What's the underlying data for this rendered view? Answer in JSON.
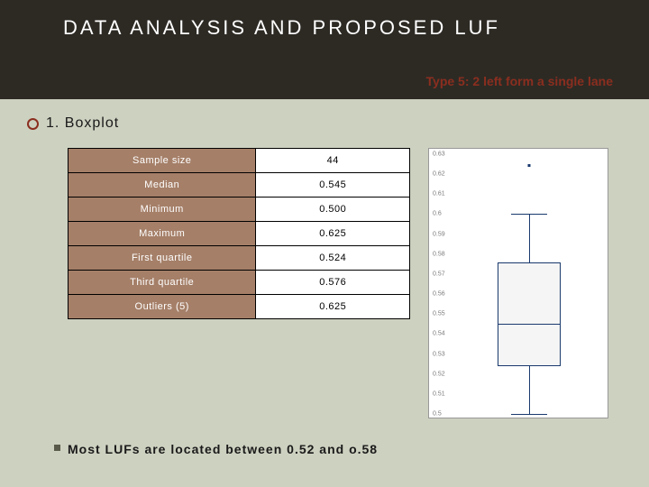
{
  "header": {
    "title": "DATA ANALYSIS AND PROPOSED LUF",
    "subtitle": "Type 5: 2 left form a single lane"
  },
  "section": {
    "title": "1. Boxplot"
  },
  "table": {
    "rows": [
      {
        "key": "Sample size",
        "val": "44"
      },
      {
        "key": "Median",
        "val": "0.545"
      },
      {
        "key": "Minimum",
        "val": "0.500"
      },
      {
        "key": "Maximum",
        "val": "0.625"
      },
      {
        "key": "First quartile",
        "val": "0.524"
      },
      {
        "key": "Third quartile",
        "val": "0.576"
      },
      {
        "key": "Outliers (5)",
        "val": "0.625"
      }
    ]
  },
  "boxplot": {
    "ymin": 0.5,
    "ymax": 0.63,
    "ytick_step": 0.01,
    "ylabels": [
      "0.63",
      "0.62",
      "0.61",
      "0.6",
      "0.59",
      "0.58",
      "0.57",
      "0.56",
      "0.55",
      "0.54",
      "0.53",
      "0.52",
      "0.51",
      "0.5"
    ],
    "q1": 0.524,
    "median": 0.545,
    "q3": 0.576,
    "whisker_low": 0.5,
    "whisker_high": 0.6,
    "outlier": 0.625,
    "box_color": "#f5f5f5",
    "line_color": "#1a3a6e"
  },
  "note": "Most LUFs are located between 0.52 and o.58",
  "colors": {
    "slide_bg": "#cdd1c0",
    "header_bg": "#2d2a24",
    "accent": "#8b2e1f",
    "cell_key_bg": "#a57f68"
  }
}
